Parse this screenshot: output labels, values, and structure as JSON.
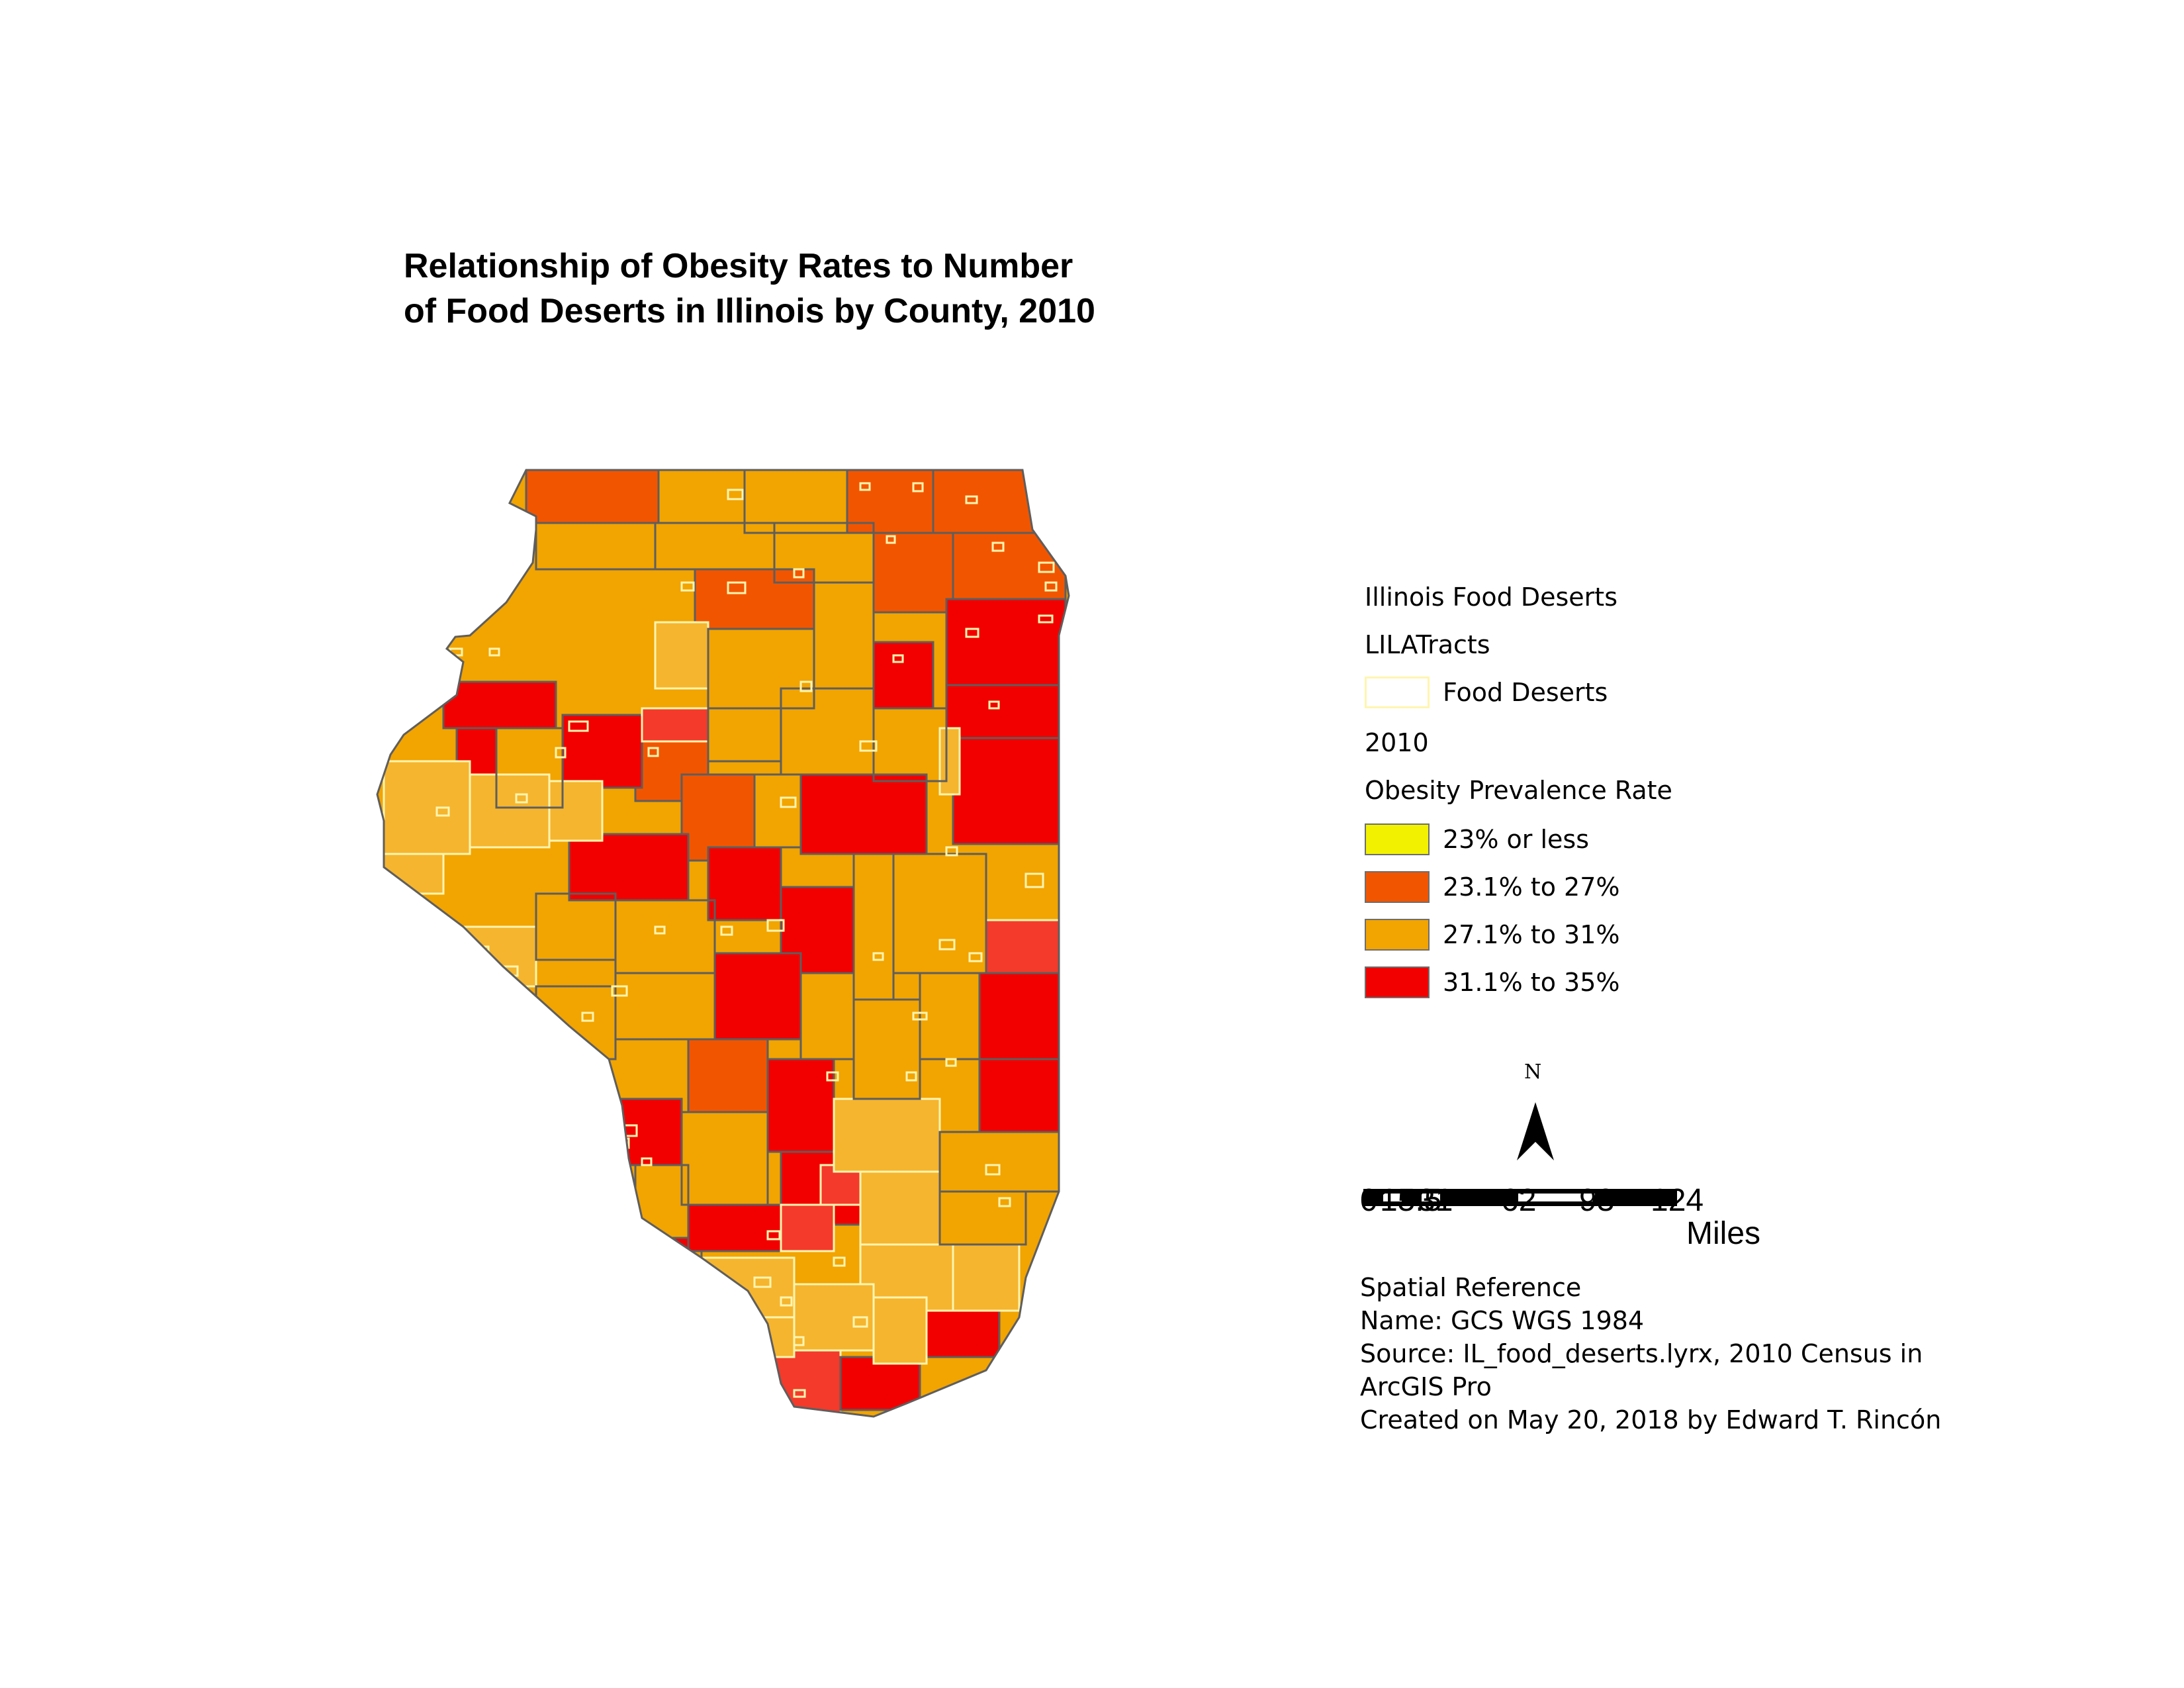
{
  "title": {
    "line1": "Relationship of Obesity Rates to Number",
    "line2": "of Food Deserts in Illinois by County, 2010"
  },
  "legend": {
    "layer1": "Illinois Food Deserts",
    "layer1_sub": "LILATracts",
    "food_deserts_label": "Food Deserts",
    "layer2": "2010",
    "field": "Obesity Prevalence Rate",
    "classes": [
      {
        "label": "23% or less",
        "color": "#f2f200"
      },
      {
        "label": "23.1% to 27%",
        "color": "#f25500"
      },
      {
        "label": "27.1% to 31%",
        "color": "#f2a400"
      },
      {
        "label": "31.1% to 35%",
        "color": "#f20000"
      }
    ],
    "food_desert_outline_color": "#fff5b0"
  },
  "north_arrow": {
    "letter": "N"
  },
  "scale_bar": {
    "ticks": [
      "0",
      "15.5",
      "31",
      "62",
      "93",
      "124"
    ],
    "units": "Miles"
  },
  "info": {
    "line1": "Spatial Reference",
    "line2": "Name: GCS WGS 1984",
    "line3": "Source: IL_food_deserts.lyrx, 2010 Census in",
    "line4": "ArcGIS Pro",
    "line5": "Created on May 20, 2018 by Edward T. Rincón"
  }
}
